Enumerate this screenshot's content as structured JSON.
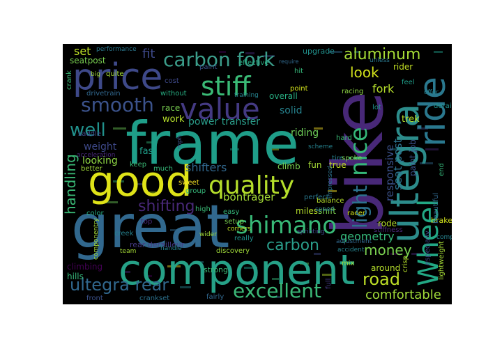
{
  "word_cloud": {
    "background": "#000000",
    "palette": [
      "#440154",
      "#482878",
      "#3e4989",
      "#31688e",
      "#26828e",
      "#1f9e89",
      "#35b779",
      "#6ece58",
      "#b5de2b",
      "#fde725"
    ],
    "words": [
      {
        "text": "frame",
        "color": "#1f9e89"
      },
      {
        "text": "bike",
        "color": "#482878"
      },
      {
        "text": "great",
        "color": "#31688e"
      },
      {
        "text": "component",
        "color": "#26a187"
      },
      {
        "text": "good",
        "color": "#dfe318"
      },
      {
        "text": "price",
        "color": "#3e4989"
      },
      {
        "text": "ultegra",
        "color": "#2c8c8b"
      },
      {
        "text": "ride",
        "color": "#2a788e"
      },
      {
        "text": "value",
        "color": "#443a83"
      },
      {
        "text": "stiff",
        "color": "#3aba76"
      },
      {
        "text": "nice",
        "color": "#35b779"
      },
      {
        "text": "quality",
        "color": "#b5de2b"
      },
      {
        "text": "shimano",
        "color": "#38b977"
      },
      {
        "text": "carbon fork",
        "color": "#3b9d8a"
      },
      {
        "text": "Wheel",
        "color": "#22a884"
      },
      {
        "text": "smooth",
        "color": "#3b528b"
      },
      {
        "text": "light",
        "color": "#2c728e"
      },
      {
        "text": "excellent",
        "color": "#3bb877"
      },
      {
        "text": "ultegra rear",
        "color": "#31688e"
      },
      {
        "text": "aluminum",
        "color": "#a5db36"
      },
      {
        "text": "road",
        "color": "#bddf26"
      },
      {
        "text": "well",
        "color": "#21918c"
      },
      {
        "text": "shifting",
        "color": "#482878"
      },
      {
        "text": "handling",
        "color": "#3aba76"
      },
      {
        "text": "carbon",
        "color": "#2a9d8a"
      },
      {
        "text": "money",
        "color": "#7ad151"
      },
      {
        "text": "look",
        "color": "#d2e21b"
      },
      {
        "text": "comfortable",
        "color": "#a0da39"
      },
      {
        "text": "fit",
        "color": "#3e4989"
      },
      {
        "text": "set",
        "color": "#bddf26"
      },
      {
        "text": "responsive",
        "color": "#3b528b"
      },
      {
        "text": "seat post",
        "color": "#2c728e"
      },
      {
        "text": "fork",
        "color": "#b5de2b"
      },
      {
        "text": "geometry",
        "color": "#35b779"
      },
      {
        "text": "shifters",
        "color": "#31688e"
      },
      {
        "text": "bontrager",
        "color": "#a5db36"
      },
      {
        "text": "weight",
        "color": "#3e4989"
      },
      {
        "text": "riding",
        "color": "#6ece58"
      },
      {
        "text": "solid",
        "color": "#26828e"
      },
      {
        "text": "power transfer",
        "color": "#2a9d8a"
      },
      {
        "text": "looking",
        "color": "#8fd744"
      },
      {
        "text": "work",
        "color": "#b5de2b"
      },
      {
        "text": "fast",
        "color": "#1f9e89"
      },
      {
        "text": "race",
        "color": "#7ad151"
      },
      {
        "text": "overall",
        "color": "#27ad81"
      },
      {
        "text": "rider",
        "color": "#c2df23"
      },
      {
        "text": "trek",
        "color": "#b5de2b"
      },
      {
        "text": "upgrade",
        "color": "#21918c"
      },
      {
        "text": "paint job",
        "color": "#3b528b"
      },
      {
        "text": "climb",
        "color": "#7ad151"
      },
      {
        "text": "fun",
        "color": "#a5db36"
      },
      {
        "text": "true",
        "color": "#c2df23"
      },
      {
        "text": "miles",
        "color": "#b5de2b"
      },
      {
        "text": "shift",
        "color": "#7ad151"
      },
      {
        "text": "rode",
        "color": "#b5de2b"
      },
      {
        "text": "brakes",
        "color": "#d2e21b"
      },
      {
        "text": "climbing",
        "color": "#440154"
      },
      {
        "text": "hills",
        "color": "#35b779"
      },
      {
        "text": "around",
        "color": "#b5de2b"
      },
      {
        "text": "rear derailleur",
        "color": "#443a83"
      },
      {
        "text": "strong",
        "color": "#3aba76"
      },
      {
        "text": "crankset",
        "color": "#2c728e"
      },
      {
        "text": "fairly",
        "color": "#31688e"
      },
      {
        "text": "front",
        "color": "#3b528b"
      },
      {
        "text": "seatpost",
        "color": "#7ad151"
      },
      {
        "text": "performance",
        "color": "#2a788e"
      },
      {
        "text": "paint",
        "color": "#3b528b"
      },
      {
        "text": "effective",
        "color": "#27ad81"
      },
      {
        "text": "quite",
        "color": "#a5db36"
      },
      {
        "text": "drivetrain",
        "color": "#31688e"
      },
      {
        "text": "cost",
        "color": "#3e4989"
      },
      {
        "text": "without",
        "color": "#27ad81"
      },
      {
        "text": "training",
        "color": "#26828e"
      },
      {
        "text": "hit",
        "color": "#35b779"
      },
      {
        "text": "point",
        "color": "#d2e21b"
      },
      {
        "text": "racing",
        "color": "#8fd744"
      },
      {
        "text": "feel",
        "color": "#1f9e89"
      },
      {
        "text": "lot",
        "color": "#21918c"
      },
      {
        "text": "crank",
        "color": "#3aba76"
      },
      {
        "text": "saddle",
        "color": "#3e4989"
      },
      {
        "text": "better",
        "color": "#a0da39"
      },
      {
        "text": "much",
        "color": "#35b779"
      },
      {
        "text": "keep",
        "color": "#3aba76"
      },
      {
        "text": "sweet",
        "color": "#fde725"
      },
      {
        "text": "group",
        "color": "#35b779"
      },
      {
        "text": "high",
        "color": "#3aba76"
      },
      {
        "text": "color",
        "color": "#27ad81"
      },
      {
        "text": "top",
        "color": "#482878"
      },
      {
        "text": "creek",
        "color": "#26828e"
      },
      {
        "text": "team",
        "color": "#a5db36"
      },
      {
        "text": "really",
        "color": "#21918c"
      },
      {
        "text": "discovery",
        "color": "#a0da39"
      },
      {
        "text": "corners",
        "color": "#bddf26"
      },
      {
        "text": "setup",
        "color": "#7ad151"
      },
      {
        "text": "easy",
        "color": "#35b779"
      },
      {
        "text": "tire",
        "color": "#26828e"
      },
      {
        "text": "spoke",
        "color": "#7ad151"
      },
      {
        "text": "impressed",
        "color": "#2c728e"
      },
      {
        "text": "balance",
        "color": "#b5de2b"
      },
      {
        "text": "speed",
        "color": "#2a788e"
      },
      {
        "text": "racer",
        "color": "#d2e21b"
      },
      {
        "text": "stiffness",
        "color": "#482878"
      },
      {
        "text": "mix",
        "color": "#a5db36"
      },
      {
        "text": "accident",
        "color": "#26828e"
      },
      {
        "text": "adjustment",
        "color": "#31688e"
      },
      {
        "text": "sprinting",
        "color": "#3e4989"
      },
      {
        "text": "componentry",
        "color": "#a5db36"
      },
      {
        "text": "handle",
        "color": "#26828e"
      },
      {
        "text": "wider",
        "color": "#a0da39"
      },
      {
        "text": "lightweight",
        "color": "#a5db36"
      },
      {
        "text": "crisp",
        "color": "#b5de2b"
      },
      {
        "text": "especially",
        "color": "#3e4989"
      },
      {
        "text": "compared",
        "color": "#26828e"
      },
      {
        "text": "beautiful",
        "color": "#31688e"
      },
      {
        "text": "end",
        "color": "#35b779"
      },
      {
        "text": "derailer",
        "color": "#21918c"
      },
      {
        "text": "hard",
        "color": "#3aba76"
      },
      {
        "text": "offer",
        "color": "#26828e"
      },
      {
        "text": "perfect",
        "color": "#2a788e"
      },
      {
        "text": "mph",
        "color": "#3b528b"
      },
      {
        "text": "acceleration",
        "color": "#482878"
      },
      {
        "text": "scheme",
        "color": "#26828e"
      },
      {
        "text": "require",
        "color": "#31688e"
      },
      {
        "text": "unless",
        "color": "#2a788e"
      },
      {
        "text": "big",
        "color": "#a0da39"
      },
      {
        "text": "full",
        "color": "#443a83"
      }
    ]
  }
}
